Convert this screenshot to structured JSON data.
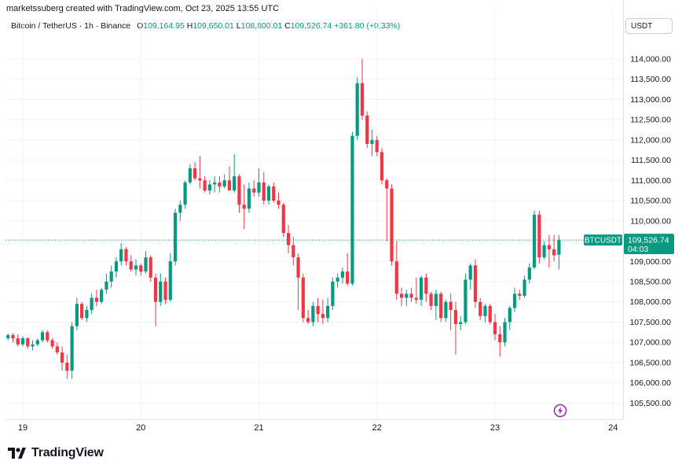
{
  "header": {
    "created_by": "marketssuberg created with TradingView.com, Oct 23, 2025 13:55 UTC",
    "symbol": "Bitcoin / TetherUS · 1h · Binance",
    "o_label": "O",
    "o_value": "109,164.95",
    "h_label": "H",
    "h_value": "109,650.01",
    "l_label": "L",
    "l_value": "108,800.01",
    "c_label": "C",
    "c_value": "109,526.74",
    "change": "+361.80 (+0.33%)"
  },
  "currency_button": "USDT",
  "brand": {
    "name": "TradingView",
    "logo_icon": "tradingview-logo-icon"
  },
  "price_tag": {
    "symbol": "BTCUSDT",
    "price": "109,526.74",
    "countdown": "04:03",
    "color": "#089981"
  },
  "event_marker": {
    "icon": "lightning-icon",
    "color": "#9c27b0"
  },
  "chart_data": {
    "type": "candlestick",
    "title": "",
    "xlabel": "",
    "ylabel": "",
    "ylim": [
      105100,
      114600
    ],
    "y_ticks": [
      "105,500.00",
      "106,000.00",
      "106,500.00",
      "107,000.00",
      "107,500.00",
      "108,000.00",
      "108,500.00",
      "109,000.00",
      "109,500.00",
      "110,000.00",
      "110,500.00",
      "111,000.00",
      "111,500.00",
      "112,000.00",
      "112,500.00",
      "113,000.00",
      "113,500.00",
      "114,000.00"
    ],
    "y_tick_values": [
      105500,
      106000,
      106500,
      107000,
      107500,
      108000,
      108500,
      109000,
      109500,
      110000,
      110500,
      111000,
      111500,
      112000,
      112500,
      113000,
      113500,
      114000
    ],
    "x_ticks": [
      "19",
      "20",
      "21",
      "22",
      "23",
      "24"
    ],
    "x_tick_hours": [
      0,
      24,
      48,
      72,
      96,
      120
    ],
    "first_candle_hour": -3,
    "last_price": 109526.74,
    "grid": true,
    "up_color": "#089981",
    "down_color": "#f23645",
    "candles": [
      [
        107100,
        107220,
        107050,
        107180
      ],
      [
        107180,
        107230,
        107000,
        107100
      ],
      [
        107100,
        107200,
        106900,
        106950
      ],
      [
        106950,
        107150,
        106900,
        107100
      ],
      [
        107100,
        107120,
        106850,
        106900
      ],
      [
        106900,
        107050,
        106800,
        106950
      ],
      [
        106950,
        107100,
        106900,
        107050
      ],
      [
        107050,
        107300,
        107000,
        107250
      ],
      [
        107250,
        107300,
        107000,
        107050
      ],
      [
        107050,
        107100,
        106850,
        106900
      ],
      [
        106900,
        107000,
        106700,
        106750
      ],
      [
        106750,
        106900,
        106300,
        106500
      ],
      [
        106500,
        106700,
        106100,
        106300
      ],
      [
        106300,
        107500,
        106100,
        107400
      ],
      [
        107400,
        108100,
        107300,
        107950
      ],
      [
        107950,
        108000,
        107550,
        107600
      ],
      [
        107600,
        107900,
        107500,
        107800
      ],
      [
        107800,
        108200,
        107700,
        108100
      ],
      [
        108100,
        108300,
        107900,
        108000
      ],
      [
        108000,
        108350,
        107950,
        108300
      ],
      [
        108300,
        108700,
        108200,
        108500
      ],
      [
        108500,
        108900,
        108350,
        108750
      ],
      [
        108750,
        109100,
        108600,
        109000
      ],
      [
        109000,
        109450,
        108900,
        109300
      ],
      [
        109300,
        109350,
        108900,
        109000
      ],
      [
        109000,
        109150,
        108750,
        108800
      ],
      [
        108800,
        109050,
        108650,
        108900
      ],
      [
        108900,
        108950,
        108650,
        108750
      ],
      [
        108750,
        109250,
        108700,
        109100
      ],
      [
        109100,
        109150,
        108500,
        108600
      ],
      [
        108600,
        108700,
        107400,
        108000
      ],
      [
        108000,
        108700,
        107900,
        108500
      ],
      [
        108500,
        108600,
        107950,
        108050
      ],
      [
        108050,
        109200,
        108000,
        109000
      ],
      [
        109000,
        110300,
        108900,
        110200
      ],
      [
        110200,
        110500,
        110000,
        110400
      ],
      [
        110400,
        111000,
        110300,
        110950
      ],
      [
        110950,
        111400,
        110900,
        111300
      ],
      [
        111300,
        111450,
        111000,
        111050
      ],
      [
        111050,
        111600,
        110800,
        111000
      ],
      [
        111000,
        111100,
        110700,
        110750
      ],
      [
        110750,
        111000,
        110650,
        110900
      ],
      [
        110900,
        111100,
        110700,
        110950
      ],
      [
        110950,
        111100,
        110700,
        110850
      ],
      [
        110850,
        111150,
        110800,
        111000
      ],
      [
        111000,
        111350,
        110800,
        110750
      ],
      [
        110750,
        111650,
        110700,
        111100
      ],
      [
        111100,
        111150,
        110200,
        110400
      ],
      [
        110400,
        110900,
        109800,
        110300
      ],
      [
        110300,
        110950,
        110200,
        110800
      ],
      [
        110800,
        111000,
        110600,
        110700
      ],
      [
        110700,
        111300,
        110600,
        110950
      ],
      [
        110950,
        111200,
        110400,
        110500
      ],
      [
        110500,
        110900,
        110400,
        110850
      ],
      [
        110850,
        110950,
        110450,
        110500
      ],
      [
        110500,
        110700,
        110300,
        110400
      ],
      [
        110400,
        110450,
        109600,
        109700
      ],
      [
        109700,
        109900,
        109200,
        109400
      ],
      [
        109400,
        109600,
        108900,
        109100
      ],
      [
        109100,
        109200,
        107800,
        108600
      ],
      [
        108600,
        108700,
        107500,
        107600
      ],
      [
        107600,
        107800,
        107450,
        107500
      ],
      [
        107500,
        108000,
        107400,
        107900
      ],
      [
        107900,
        108100,
        107500,
        107700
      ],
      [
        107700,
        108050,
        107450,
        107600
      ],
      [
        107600,
        108100,
        107500,
        107900
      ],
      [
        107900,
        108600,
        107800,
        108500
      ],
      [
        108500,
        108700,
        108350,
        108600
      ],
      [
        108600,
        108850,
        108450,
        108750
      ],
      [
        108750,
        109200,
        108400,
        108450
      ],
      [
        108450,
        112200,
        108400,
        112100
      ],
      [
        112100,
        113550,
        112000,
        113400
      ],
      [
        113400,
        114000,
        112500,
        112600
      ],
      [
        112600,
        112700,
        111800,
        111900
      ],
      [
        111900,
        112250,
        111600,
        112000
      ],
      [
        112000,
        112100,
        111600,
        111700
      ],
      [
        111700,
        111800,
        110900,
        111000
      ],
      [
        111000,
        111050,
        109500,
        110800
      ],
      [
        110800,
        110900,
        108900,
        109000
      ],
      [
        109000,
        109500,
        108050,
        108200
      ],
      [
        108200,
        108350,
        107900,
        108100
      ],
      [
        108100,
        108300,
        107900,
        108200
      ],
      [
        108200,
        108350,
        108000,
        108100
      ],
      [
        108100,
        108600,
        107950,
        108050
      ],
      [
        108050,
        108650,
        107900,
        108600
      ],
      [
        108600,
        108700,
        108000,
        108200
      ],
      [
        108200,
        108250,
        107800,
        107900
      ],
      [
        107900,
        108300,
        107550,
        108200
      ],
      [
        108200,
        108250,
        107500,
        107600
      ],
      [
        107600,
        108050,
        107500,
        108000
      ],
      [
        108000,
        108200,
        107300,
        107800
      ],
      [
        107800,
        108000,
        106700,
        107450
      ],
      [
        107450,
        107650,
        107300,
        107500
      ],
      [
        107500,
        108700,
        107450,
        108550
      ],
      [
        108550,
        108950,
        108300,
        108900
      ],
      [
        108900,
        109050,
        107850,
        108000
      ],
      [
        108000,
        108100,
        107550,
        107650
      ],
      [
        107650,
        107950,
        107500,
        107900
      ],
      [
        107900,
        107950,
        107450,
        107500
      ],
      [
        107500,
        107700,
        107050,
        107200
      ],
      [
        107200,
        107400,
        106650,
        107000
      ],
      [
        107000,
        107600,
        106900,
        107500
      ],
      [
        107500,
        107900,
        107300,
        107850
      ],
      [
        107850,
        108350,
        107750,
        108200
      ],
      [
        108200,
        108300,
        108050,
        108150
      ],
      [
        108150,
        108650,
        108100,
        108550
      ],
      [
        108550,
        108950,
        108450,
        108850
      ],
      [
        108850,
        110250,
        108800,
        110150
      ],
      [
        110150,
        110250,
        108950,
        109100
      ],
      [
        109100,
        109500,
        109050,
        109400
      ],
      [
        109400,
        109650,
        108850,
        109300
      ],
      [
        109300,
        109650,
        109000,
        109150
      ],
      [
        109164.95,
        109650.01,
        108800.01,
        109526.74
      ]
    ]
  }
}
